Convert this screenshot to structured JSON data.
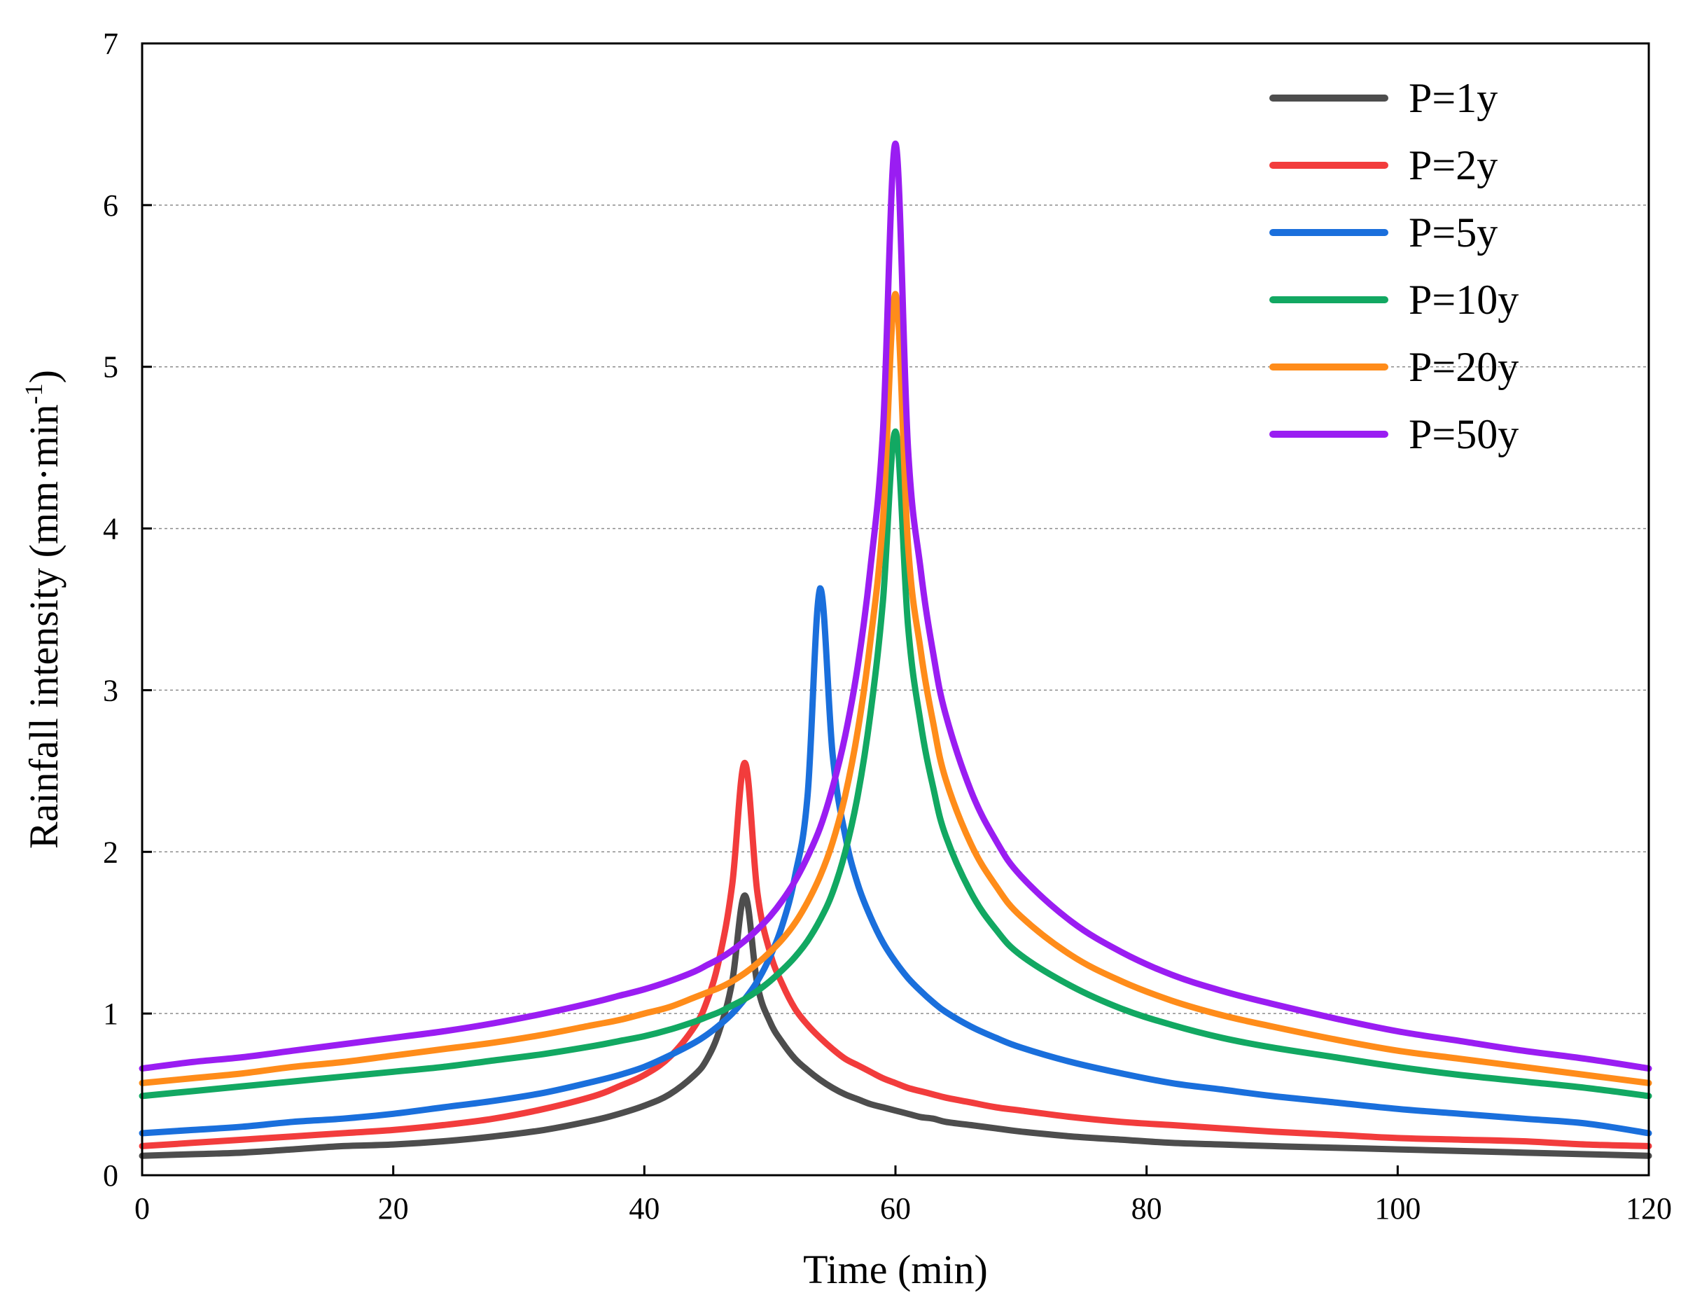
{
  "chart_data": {
    "type": "line",
    "xlabel": "Time (min)",
    "ylabel": "Rainfall intensity (mm·min",
    "ylabel_sup": "-1",
    "ylabel_close": ")",
    "xlim": [
      0,
      120
    ],
    "ylim": [
      0,
      7
    ],
    "x_ticks": [
      0,
      20,
      40,
      60,
      80,
      100,
      120
    ],
    "y_ticks": [
      0,
      1,
      2,
      3,
      4,
      5,
      6,
      7
    ],
    "y_grid": [
      1,
      2,
      3,
      4,
      5,
      6
    ],
    "grid": true,
    "legend_position": "top-right",
    "x": [
      0,
      4,
      8,
      12,
      16,
      20,
      24,
      28,
      32,
      36,
      38,
      40,
      42,
      44,
      45,
      46,
      47,
      48,
      49,
      50,
      51,
      52,
      53,
      54,
      55,
      56,
      57,
      58,
      59,
      60,
      61,
      62,
      63,
      64,
      66,
      68,
      70,
      74,
      78,
      82,
      86,
      90,
      95,
      100,
      105,
      110,
      115,
      120
    ],
    "series": [
      {
        "name": "P=1y",
        "color": "#4d4d4d",
        "values": [
          0.12,
          0.13,
          0.14,
          0.16,
          0.18,
          0.19,
          0.21,
          0.24,
          0.28,
          0.34,
          0.38,
          0.43,
          0.5,
          0.62,
          0.72,
          0.9,
          1.2,
          1.73,
          1.18,
          0.95,
          0.82,
          0.72,
          0.65,
          0.59,
          0.54,
          0.5,
          0.47,
          0.44,
          0.42,
          0.4,
          0.38,
          0.36,
          0.35,
          0.33,
          0.31,
          0.29,
          0.27,
          0.24,
          0.22,
          0.2,
          0.19,
          0.18,
          0.17,
          0.16,
          0.15,
          0.14,
          0.13,
          0.12
        ]
      },
      {
        "name": "P=2y",
        "color": "#f23c3c",
        "values": [
          0.18,
          0.2,
          0.22,
          0.24,
          0.26,
          0.28,
          0.31,
          0.35,
          0.41,
          0.49,
          0.55,
          0.62,
          0.73,
          0.92,
          1.08,
          1.35,
          1.8,
          2.55,
          1.75,
          1.38,
          1.18,
          1.03,
          0.93,
          0.85,
          0.78,
          0.72,
          0.68,
          0.64,
          0.6,
          0.57,
          0.54,
          0.52,
          0.5,
          0.48,
          0.45,
          0.42,
          0.4,
          0.36,
          0.33,
          0.31,
          0.29,
          0.27,
          0.25,
          0.23,
          0.22,
          0.21,
          0.19,
          0.18
        ]
      },
      {
        "name": "P=5y",
        "color": "#1a6fdc",
        "values": [
          0.26,
          0.28,
          0.3,
          0.33,
          0.35,
          0.38,
          0.42,
          0.46,
          0.51,
          0.58,
          0.62,
          0.67,
          0.74,
          0.82,
          0.87,
          0.93,
          1.0,
          1.09,
          1.2,
          1.35,
          1.55,
          1.85,
          2.35,
          3.63,
          2.6,
          2.1,
          1.8,
          1.6,
          1.44,
          1.32,
          1.22,
          1.14,
          1.07,
          1.01,
          0.92,
          0.85,
          0.79,
          0.7,
          0.63,
          0.57,
          0.53,
          0.49,
          0.45,
          0.41,
          0.38,
          0.35,
          0.32,
          0.26
        ]
      },
      {
        "name": "P=10y",
        "color": "#12a862",
        "values": [
          0.49,
          0.52,
          0.55,
          0.58,
          0.61,
          0.64,
          0.67,
          0.71,
          0.75,
          0.8,
          0.83,
          0.86,
          0.9,
          0.95,
          0.98,
          1.01,
          1.05,
          1.09,
          1.14,
          1.2,
          1.27,
          1.35,
          1.45,
          1.58,
          1.75,
          2.0,
          2.35,
          2.85,
          3.55,
          4.6,
          3.4,
          2.8,
          2.4,
          2.1,
          1.75,
          1.52,
          1.36,
          1.17,
          1.03,
          0.93,
          0.85,
          0.79,
          0.73,
          0.67,
          0.62,
          0.58,
          0.54,
          0.49
        ]
      },
      {
        "name": "P=20y",
        "color": "#ff8c1a",
        "values": [
          0.57,
          0.6,
          0.63,
          0.67,
          0.7,
          0.74,
          0.78,
          0.82,
          0.87,
          0.93,
          0.96,
          1.0,
          1.04,
          1.1,
          1.13,
          1.16,
          1.2,
          1.25,
          1.31,
          1.38,
          1.46,
          1.56,
          1.69,
          1.85,
          2.06,
          2.35,
          2.75,
          3.3,
          4.05,
          5.45,
          3.9,
          3.25,
          2.8,
          2.45,
          2.05,
          1.79,
          1.6,
          1.36,
          1.2,
          1.08,
          0.99,
          0.92,
          0.84,
          0.77,
          0.72,
          0.67,
          0.62,
          0.57
        ]
      },
      {
        "name": "P=50y",
        "color": "#9a1df2",
        "values": [
          0.66,
          0.7,
          0.73,
          0.77,
          0.81,
          0.85,
          0.89,
          0.94,
          1.0,
          1.07,
          1.11,
          1.15,
          1.2,
          1.26,
          1.3,
          1.34,
          1.39,
          1.45,
          1.52,
          1.6,
          1.7,
          1.82,
          1.97,
          2.15,
          2.4,
          2.72,
          3.15,
          3.75,
          4.6,
          6.38,
          4.5,
          3.75,
          3.23,
          2.85,
          2.38,
          2.07,
          1.85,
          1.57,
          1.38,
          1.24,
          1.14,
          1.06,
          0.97,
          0.89,
          0.83,
          0.77,
          0.72,
          0.66
        ]
      }
    ]
  }
}
